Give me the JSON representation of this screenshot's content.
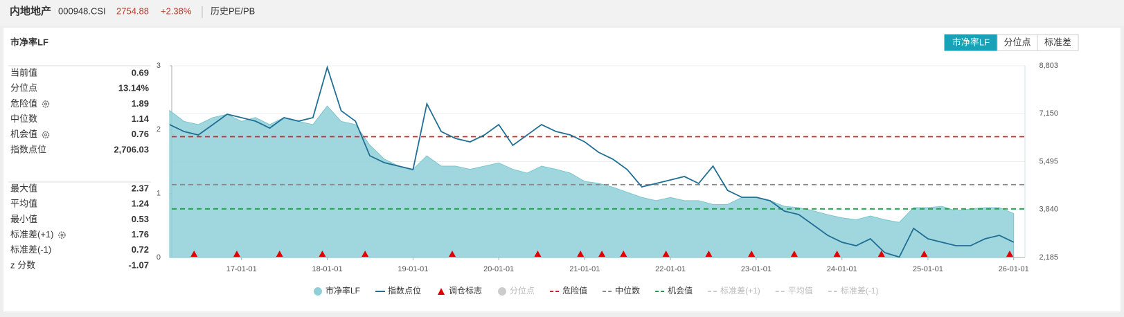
{
  "header": {
    "name": "内地地产",
    "code": "000948.CSI",
    "price": "2754.88",
    "change": "+2.38%",
    "tab": "历史PE/PB"
  },
  "panel_label": "市净率LF",
  "buttons": [
    "市净率LF",
    "分位点",
    "标准差"
  ],
  "stats": [
    [
      {
        "label": "当前值",
        "value": 0.69
      },
      {
        "label": "分位点",
        "value": "13.14%"
      },
      {
        "label": "危险值",
        "value": 1.89,
        "gear": true
      },
      {
        "label": "中位数",
        "value": 1.14
      },
      {
        "label": "机会值",
        "value": 0.76,
        "gear": true
      },
      {
        "label": "指数点位",
        "value": "2,706.03"
      }
    ],
    [
      {
        "label": "最大值",
        "value": 2.37
      },
      {
        "label": "平均值",
        "value": 1.24
      },
      {
        "label": "最小值",
        "value": 0.53
      },
      {
        "label": "标准差(+1)",
        "value": 1.76,
        "gear": true
      },
      {
        "label": "标准差(-1)",
        "value": 0.72
      },
      {
        "label": "z 分数",
        "value": -1.07
      }
    ]
  ],
  "chart_data": {
    "type": "area-line",
    "x": [
      "16-03-01",
      "16-05-01",
      "16-07-01",
      "16-09-01",
      "16-11-01",
      "17-01-01",
      "17-03-01",
      "17-05-01",
      "17-07-01",
      "17-09-01",
      "17-11-01",
      "18-01-01",
      "18-03-01",
      "18-05-01",
      "18-07-01",
      "18-09-01",
      "18-11-01",
      "19-01-01",
      "19-03-01",
      "19-05-01",
      "19-07-01",
      "19-09-01",
      "19-11-01",
      "20-01-01",
      "20-03-01",
      "20-05-01",
      "20-07-01",
      "20-09-01",
      "20-11-01",
      "21-01-01",
      "21-03-01",
      "21-05-01",
      "21-07-01",
      "21-09-01",
      "21-11-01",
      "22-01-01",
      "22-03-01",
      "22-05-01",
      "22-07-01",
      "22-09-01",
      "22-11-01",
      "23-01-01",
      "23-03-01",
      "23-05-01",
      "23-07-01",
      "23-09-01",
      "23-11-01",
      "24-01-01",
      "24-03-01",
      "24-05-01",
      "24-07-01",
      "24-09-01",
      "24-11-01",
      "25-01-01",
      "25-03-01",
      "25-05-01",
      "25-07-01",
      "25-09-01",
      "25-11-01",
      "26-01-01"
    ],
    "series": [
      {
        "name": "市净率LF",
        "color": "#8fd0d8",
        "values": [
          2.3,
          2.13,
          2.08,
          2.19,
          2.24,
          2.13,
          2.19,
          2.08,
          2.19,
          2.13,
          2.08,
          2.37,
          2.13,
          2.08,
          1.76,
          1.54,
          1.43,
          1.38,
          1.59,
          1.43,
          1.43,
          1.38,
          1.43,
          1.48,
          1.38,
          1.32,
          1.43,
          1.38,
          1.32,
          1.19,
          1.16,
          1.1,
          1.02,
          0.94,
          0.89,
          0.94,
          0.89,
          0.89,
          0.83,
          0.83,
          0.94,
          0.94,
          0.89,
          0.8,
          0.78,
          0.73,
          0.67,
          0.62,
          0.59,
          0.65,
          0.59,
          0.55,
          0.78,
          0.78,
          0.8,
          0.73,
          0.76,
          0.78,
          0.78,
          0.69
        ]
      },
      {
        "name": "指数点位",
        "color": "#1f6e93",
        "axis": "y2",
        "values": [
          6772,
          6533,
          6414,
          6772,
          7130,
          7011,
          6891,
          6652,
          7011,
          6891,
          7011,
          8750,
          7250,
          6891,
          5697,
          5458,
          5339,
          5219,
          7489,
          6533,
          6294,
          6175,
          6414,
          6772,
          6055,
          6414,
          6772,
          6533,
          6414,
          6175,
          5816,
          5577,
          5219,
          4622,
          4741,
          4861,
          4980,
          4741,
          5339,
          4502,
          4263,
          4263,
          4144,
          3786,
          3666,
          3308,
          2949,
          2711,
          2591,
          2830,
          2352,
          2200,
          3188,
          2830,
          2711,
          2591,
          2591,
          2830,
          2949,
          2711
        ]
      }
    ],
    "markers": {
      "name": "调仓标志",
      "color": "#e00000",
      "dates": [
        "16-06-13",
        "16-12-12",
        "17-06-12",
        "17-12-11",
        "18-06-11",
        "19-06-17",
        "20-06-15",
        "20-12-14",
        "21-03-15",
        "21-06-15",
        "21-12-13",
        "22-06-13",
        "22-12-12",
        "23-06-12",
        "23-12-11",
        "24-06-17",
        "24-12-16",
        "25-12-15"
      ]
    },
    "lines": [
      {
        "name": "危险值",
        "color": "#c62828",
        "value": 1.89
      },
      {
        "name": "中位数",
        "color": "#888888",
        "value": 1.14
      },
      {
        "name": "机会值",
        "color": "#1e9e4a",
        "value": 0.76
      }
    ],
    "inactive": [
      "分位点",
      "标准差(+1)",
      "平均值",
      "标准差(-1)"
    ],
    "xlim": [
      "16-03-10",
      "26-02-18"
    ],
    "xticks": [
      "17-01-01",
      "18-01-01",
      "19-01-01",
      "20-01-01",
      "21-01-01",
      "22-01-01",
      "23-01-01",
      "24-01-01",
      "25-01-01",
      "26-01-01"
    ],
    "ylim": [
      0,
      3
    ],
    "yticks": [
      0,
      1,
      2,
      3
    ],
    "y2lim": [
      2185,
      8803
    ],
    "y2ticks": [
      {
        "value": 2185,
        "label": "2,185"
      },
      {
        "value": 3840,
        "label": "3,840"
      },
      {
        "value": 5495,
        "label": "5,495"
      },
      {
        "value": 7150,
        "label": "7,150"
      },
      {
        "value": 8803,
        "label": "8,803"
      }
    ],
    "grid": true
  }
}
